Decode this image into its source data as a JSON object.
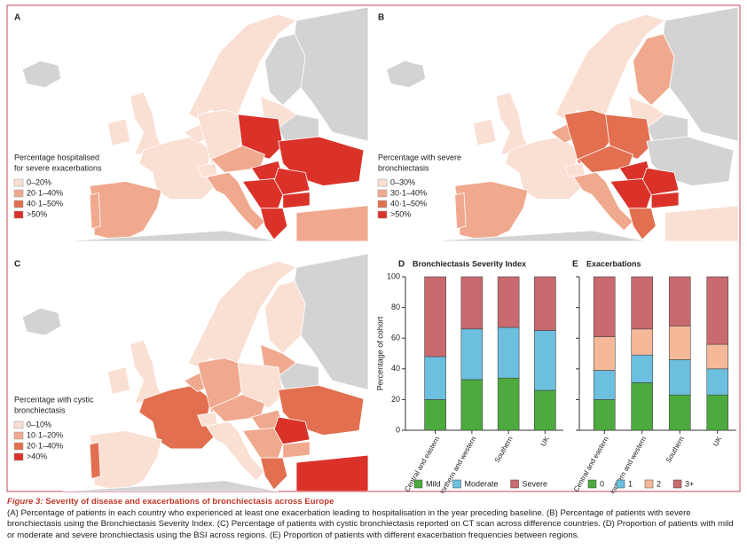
{
  "maps": [
    {
      "panel": "A",
      "legend_title": [
        "Percentage hospitalised",
        "for severe exacerbations"
      ],
      "legend": [
        "0–20%",
        "20·1–40%",
        "40·1–50%",
        ">50%"
      ]
    },
    {
      "panel": "B",
      "legend_title": [
        "Percentage with severe",
        "bronchiectasis"
      ],
      "legend": [
        "0–30%",
        "30·1–40%",
        "40·1–50%",
        ">50%"
      ]
    },
    {
      "panel": "C",
      "legend_title": [
        "Percentage with cystic",
        "bronchiectasis"
      ],
      "legend": [
        "0–10%",
        "10·1–20%",
        "20·1–40%",
        ">40%"
      ]
    }
  ],
  "chart_data": [
    {
      "type": "stacked_bar",
      "panel": "D",
      "title": "Bronchiectasis Severity Index",
      "ylabel": "Percentage of cohort",
      "categories": [
        "Central and eastern",
        "Northern and western",
        "Southern",
        "UK"
      ],
      "series": [
        {
          "name": "Mild",
          "color": "#4daa3e",
          "values": [
            20,
            33,
            34,
            26
          ]
        },
        {
          "name": "Moderate",
          "color": "#6cbfdf",
          "values": [
            28,
            33,
            33,
            39
          ]
        },
        {
          "name": "Severe",
          "color": "#c96a6e",
          "values": [
            52,
            34,
            33,
            35
          ]
        }
      ],
      "ylim": [
        0,
        100
      ],
      "yticks": [
        0,
        20,
        40,
        60,
        80,
        100
      ],
      "show_tick_labels": true
    },
    {
      "type": "stacked_bar",
      "panel": "E",
      "title": "Exacerbations",
      "categories": [
        "Central and eastern",
        "Northern and western",
        "Southern",
        "UK"
      ],
      "series": [
        {
          "name": "0",
          "color": "#4daa3e",
          "values": [
            20,
            31,
            23,
            23
          ]
        },
        {
          "name": "1",
          "color": "#6cbfdf",
          "values": [
            19,
            18,
            23,
            17
          ]
        },
        {
          "name": "2",
          "color": "#f5b99a",
          "values": [
            22,
            17,
            22,
            16
          ]
        },
        {
          "name": "3+",
          "color": "#c96a6e",
          "values": [
            39,
            34,
            32,
            44
          ]
        }
      ],
      "ylim": [
        0,
        100
      ],
      "yticks": [
        0,
        20,
        40,
        60,
        80,
        100
      ],
      "show_tick_labels": false
    }
  ],
  "caption": {
    "label": "Figure 3:",
    "title": "Severity of disease and exacerbations of bronchiectasis across Europe",
    "text": "(A) Percentage of patients in each country who experienced at least one exacerbation leading to hospitalisation in the year preceding baseline. (B) Percentage of patients with severe bronchiectasis using the Bronchiectasis Severity Index. (C) Percentage of patients with cystic bronchiectasis reported on CT scan across difference countries. (D) Proportion of patients with mild or moderate and severe bronchiectasis using the BSI across regions. (E) Proportion of patients with different exacerbation frequencies between regions."
  }
}
